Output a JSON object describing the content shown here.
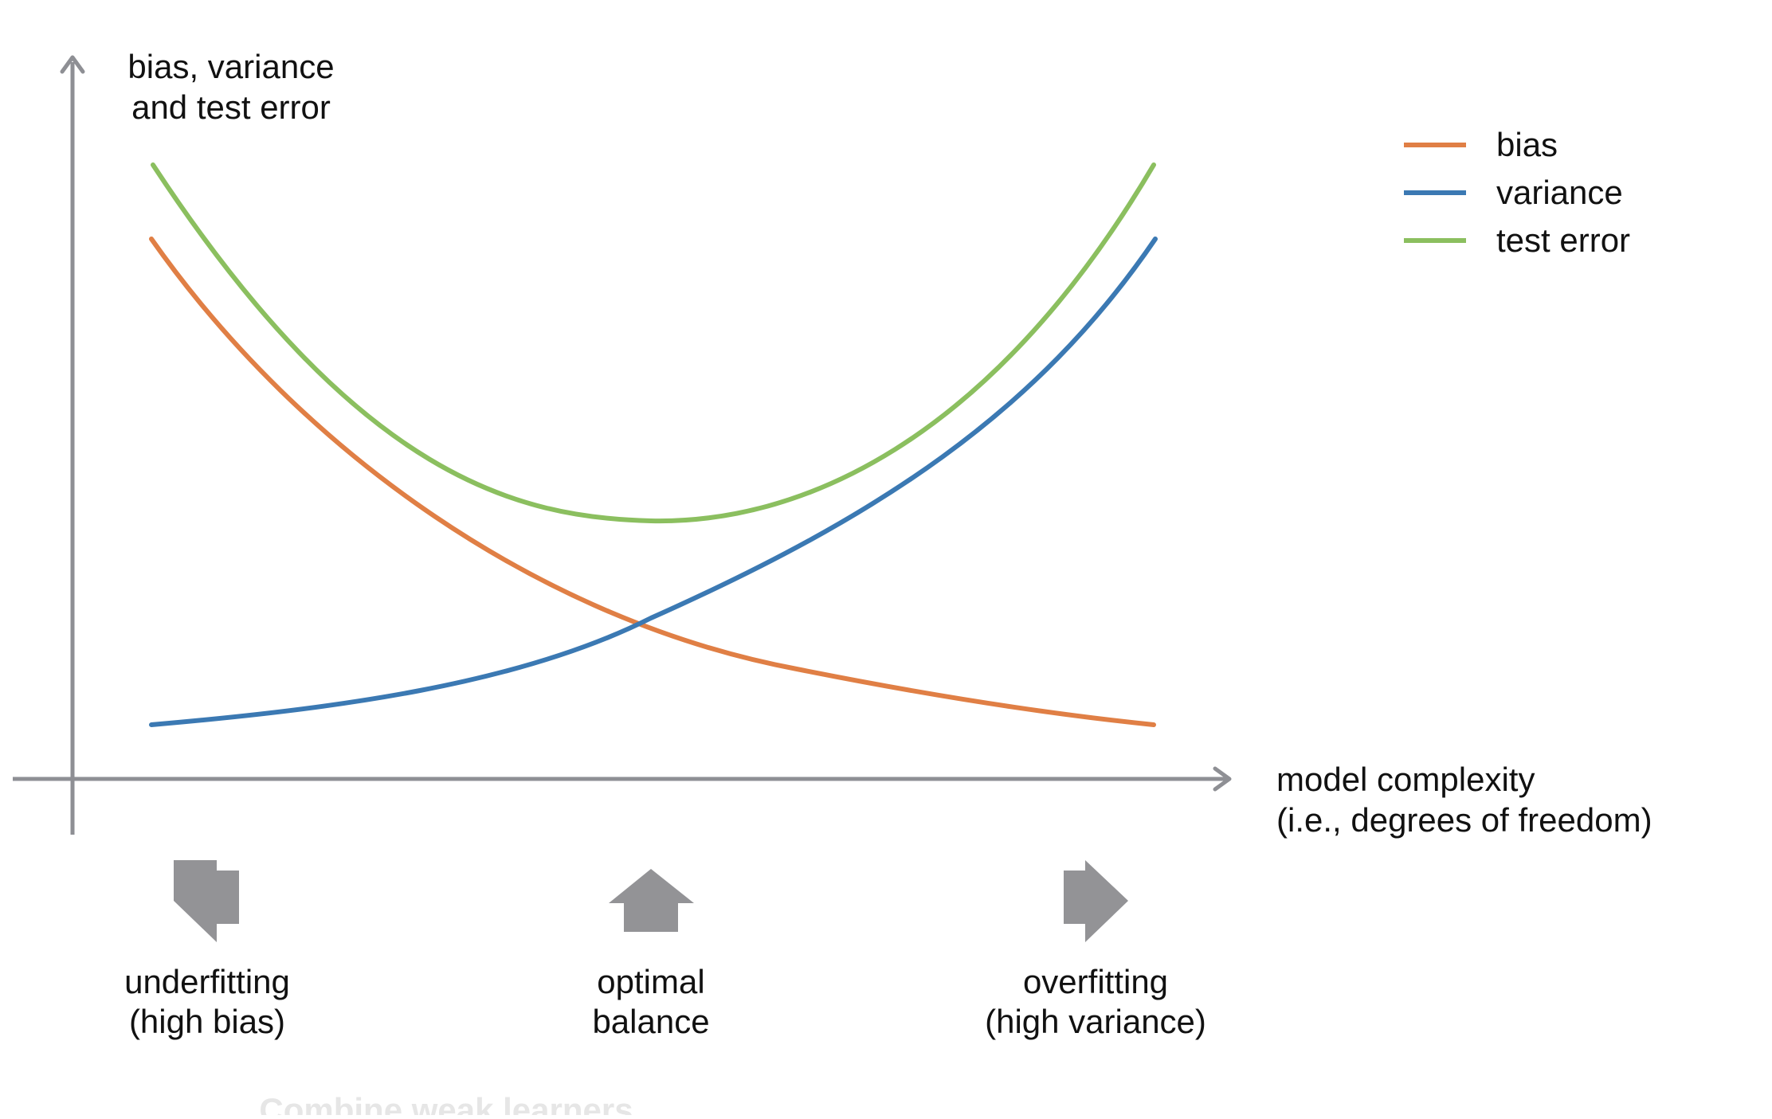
{
  "colors": {
    "axis": "#8e8f94",
    "bias": "#e07f45",
    "variance": "#3b79b3",
    "test_error": "#8bbf5f",
    "arrow": "#939396",
    "faint_text": "#e6e6e6"
  },
  "y_axis_label": [
    "bias, variance",
    "and test error"
  ],
  "x_axis_label": [
    "model complexity",
    "(i.e., degrees of freedom)"
  ],
  "legend": [
    {
      "label": "bias",
      "color_key": "bias"
    },
    {
      "label": "variance",
      "color_key": "variance"
    },
    {
      "label": "test error",
      "color_key": "test_error"
    }
  ],
  "regions": {
    "left": [
      "underfitting",
      "(high bias)"
    ],
    "center": [
      "optimal",
      "balance"
    ],
    "right": [
      "overfitting",
      "(high variance)"
    ]
  },
  "faint_caption": "Combine weak learners",
  "chart_data": {
    "type": "line",
    "xlabel": "model complexity (i.e., degrees of freedom)",
    "ylabel": "bias, variance and test error",
    "grid": false,
    "legend_placement": "top-right",
    "series": [
      {
        "name": "bias",
        "shape": "decreasing convex curve, high at low complexity, low at high complexity"
      },
      {
        "name": "variance",
        "shape": "increasing convex curve, low at low complexity, high at high complexity"
      },
      {
        "name": "test error",
        "shape": "U-shaped curve with minimum at optimal balance"
      }
    ]
  }
}
